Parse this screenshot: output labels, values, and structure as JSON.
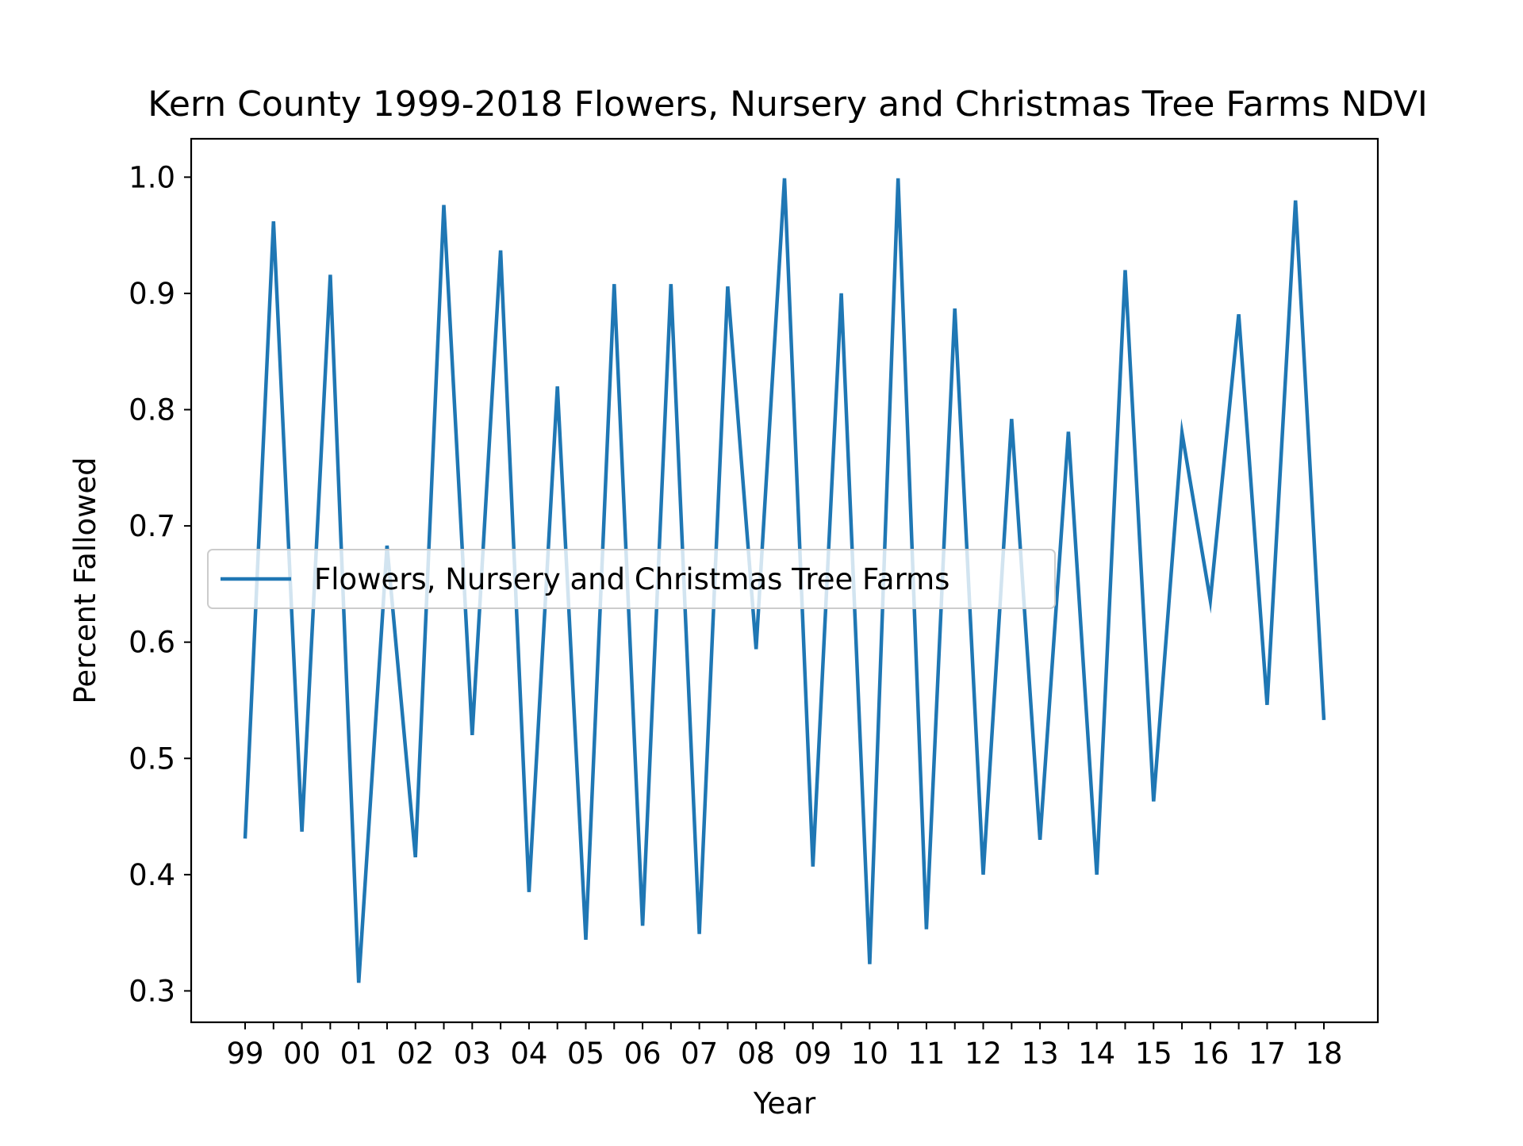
{
  "chart_data": {
    "type": "line",
    "title": "Kern County 1999-2018 Flowers, Nursery and Christmas Tree Farms NDVI",
    "xlabel": "Year",
    "ylabel": "Percent Fallowed",
    "x_tick_labels": [
      "99",
      "00",
      "01",
      "02",
      "03",
      "04",
      "05",
      "06",
      "07",
      "08",
      "09",
      "10",
      "11",
      "12",
      "13",
      "14",
      "15",
      "16",
      "17",
      "18"
    ],
    "y_ticks": [
      0.3,
      0.4,
      0.5,
      0.6,
      0.7,
      0.8,
      0.9,
      1.0
    ],
    "y_tick_labels": [
      "0.3",
      "0.4",
      "0.5",
      "0.6",
      "0.7",
      "0.8",
      "0.9",
      "1.0"
    ],
    "ylim": [
      0.273,
      1.033
    ],
    "legend_position": "center-left",
    "series": [
      {
        "name": "Flowers, Nursery and Christmas Tree Farms",
        "color": "#1f77b4",
        "values": [
          0.431,
          0.962,
          0.437,
          0.916,
          0.307,
          0.683,
          0.415,
          0.976,
          0.52,
          0.937,
          0.385,
          0.82,
          0.344,
          0.908,
          0.356,
          0.908,
          0.349,
          0.906,
          0.594,
          0.999,
          0.407,
          0.9,
          0.323,
          0.999,
          0.353,
          0.887,
          0.4,
          0.792,
          0.43,
          0.781,
          0.4,
          0.92,
          0.463,
          0.78,
          0.636,
          0.882,
          0.546,
          0.98,
          0.533
        ]
      }
    ]
  }
}
